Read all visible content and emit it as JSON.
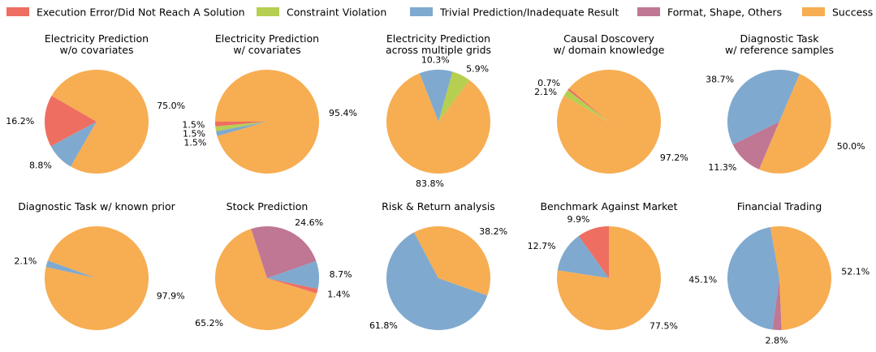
{
  "colors": {
    "execution_error": "#ee6e62",
    "constraint_violation": "#b6cf50",
    "trivial_prediction": "#7fa9cf",
    "format_shape_others": "#bf7794",
    "success": "#f7ad52"
  },
  "chart_data": {
    "type": "pie",
    "legend": {
      "placement": "top",
      "entries": [
        {
          "key": "execution_error",
          "label": "Execution Error/Did Not Reach A Solution"
        },
        {
          "key": "constraint_violation",
          "label": "Constraint Violation"
        },
        {
          "key": "trivial_prediction",
          "label": "Trivial Prediction/Inadequate Result"
        },
        {
          "key": "format_shape_others",
          "label": "Format, Shape, Others"
        },
        {
          "key": "success",
          "label": "Success"
        }
      ]
    },
    "charts": [
      {
        "title": [
          "Electricity Prediction",
          "w/o covariates"
        ],
        "start_angle": 150,
        "slices": [
          {
            "key": "execution_error",
            "value": 16.2,
            "label": "16.2%"
          },
          {
            "key": "trivial_prediction",
            "value": 8.8,
            "label": "8.8%"
          },
          {
            "key": "success",
            "value": 75.0,
            "label": "75.0%"
          }
        ]
      },
      {
        "title": [
          "Electricity Prediction",
          "w/ covariates"
        ],
        "start_angle": 180,
        "slices": [
          {
            "key": "execution_error",
            "value": 1.5,
            "label": "1.5%"
          },
          {
            "key": "constraint_violation",
            "value": 1.5,
            "label": "1.5%"
          },
          {
            "key": "trivial_prediction",
            "value": 1.5,
            "label": "1.5%"
          },
          {
            "key": "success",
            "value": 95.4,
            "label": "95.4%"
          }
        ]
      },
      {
        "title": [
          "Electricity Prediction",
          "across multiple grids"
        ],
        "start_angle": 53,
        "slices": [
          {
            "key": "constraint_violation",
            "value": 5.9,
            "label": "5.9%"
          },
          {
            "key": "trivial_prediction",
            "value": 10.3,
            "label": "10.3%"
          },
          {
            "key": "success",
            "value": 83.8,
            "label": "83.8%"
          }
        ]
      },
      {
        "title": [
          "Causal Doscovery",
          "w/ domain knowledge"
        ],
        "start_angle": 140,
        "slices": [
          {
            "key": "execution_error",
            "value": 0.7,
            "label": "0.7%"
          },
          {
            "key": "constraint_violation",
            "value": 2.1,
            "label": "2.1%"
          },
          {
            "key": "success",
            "value": 97.2,
            "label": "97.2%"
          }
        ]
      },
      {
        "title": [
          "Diagnostic Task",
          "w/ reference samples"
        ],
        "start_angle": 67,
        "slices": [
          {
            "key": "trivial_prediction",
            "value": 38.7,
            "label": "38.7%"
          },
          {
            "key": "format_shape_others",
            "value": 11.3,
            "label": "11.3%"
          },
          {
            "key": "success",
            "value": 50.0,
            "label": "50.0%"
          }
        ]
      },
      {
        "title": [
          "Diagnostic Task w/ known prior"
        ],
        "start_angle": 160,
        "slices": [
          {
            "key": "trivial_prediction",
            "value": 2.1,
            "label": "2.1%"
          },
          {
            "key": "success",
            "value": 97.9,
            "label": "97.9%"
          }
        ]
      },
      {
        "title": [
          "Stock Prediction"
        ],
        "start_angle": 108,
        "slices": [
          {
            "key": "success",
            "value": 65.2,
            "label": "65.2%"
          },
          {
            "key": "execution_error",
            "value": 1.4,
            "label": "1.4%"
          },
          {
            "key": "trivial_prediction",
            "value": 8.7,
            "label": "8.7%"
          },
          {
            "key": "format_shape_others",
            "value": 24.6,
            "label": "24.6%"
          }
        ]
      },
      {
        "title": [
          "Risk & Return analysis"
        ],
        "start_angle": 118,
        "slices": [
          {
            "key": "trivial_prediction",
            "value": 61.8,
            "label": "61.8%"
          },
          {
            "key": "success",
            "value": 38.2,
            "label": "38.2%"
          }
        ]
      },
      {
        "title": [
          "Benchmark Against Market"
        ],
        "start_angle": 90,
        "slices": [
          {
            "key": "execution_error",
            "value": 9.9,
            "label": "9.9%"
          },
          {
            "key": "trivial_prediction",
            "value": 12.7,
            "label": "12.7%"
          },
          {
            "key": "success",
            "value": 77.5,
            "label": "77.5%"
          }
        ]
      },
      {
        "title": [
          "Financial Trading"
        ],
        "start_angle": 100,
        "slices": [
          {
            "key": "trivial_prediction",
            "value": 45.1,
            "label": "45.1%"
          },
          {
            "key": "format_shape_others",
            "value": 2.8,
            "label": "2.8%"
          },
          {
            "key": "success",
            "value": 52.1,
            "label": "52.1%"
          }
        ]
      }
    ]
  }
}
